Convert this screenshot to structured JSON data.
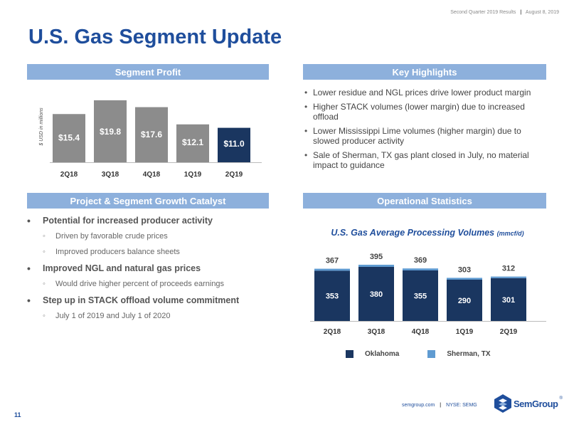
{
  "header": {
    "results": "Second Quarter 2019 Results",
    "date": "August 8, 2019"
  },
  "title": "U.S. Gas Segment Update",
  "sections": {
    "segment_profit": "Segment Profit",
    "key_highlights": "Key Highlights",
    "growth_catalyst": "Project & Segment Growth Catalyst",
    "operational_stats": "Operational Statistics"
  },
  "highlights": [
    "Lower residue and NGL prices drive lower product margin",
    "Higher STACK volumes (lower margin) due to increased offload",
    "Lower Mississippi Lime volumes (higher margin) due to slowed producer activity",
    "Sale of Sherman, TX gas plant closed in July, no material impact to guidance"
  ],
  "catalysts": [
    {
      "main": "Potential for increased producer activity",
      "subs": [
        "Driven by favorable crude prices",
        "Improved producers balance sheets"
      ]
    },
    {
      "main": "Improved NGL and natural gas prices",
      "subs": [
        "Would drive higher percent of proceeds earnings"
      ]
    },
    {
      "main": "Step up in STACK offload volume commitment",
      "subs": [
        "July 1 of 2019 and July 1 of 2020"
      ]
    }
  ],
  "ops_title": "U.S. Gas Average Processing Volumes",
  "ops_unit": "(mmcf/d)",
  "legend": {
    "oklahoma": "Oklahoma",
    "sherman": "Sherman, TX"
  },
  "colors": {
    "brand": "#1f4e9c",
    "header_bar": "#8db0dc",
    "oklahoma": "#1a3660",
    "sherman": "#5f9bd1",
    "profit_bar": "#8c8c8c",
    "profit_current": "#1a3660"
  },
  "page_number": "11",
  "footer": {
    "site": "semgroup.com",
    "ticker": "NYSE: SEMG"
  },
  "logo": {
    "text": "SemGroup",
    "mark": "®"
  },
  "chart_data": [
    {
      "type": "bar",
      "categories": [
        "2Q18",
        "3Q18",
        "4Q18",
        "1Q19",
        "2Q19"
      ],
      "values": [
        15.4,
        19.8,
        17.6,
        12.1,
        11.0
      ],
      "value_labels": [
        "$15.4",
        "$19.8",
        "$17.6",
        "$12.1",
        "$11.0"
      ],
      "ylabel": "$ USD in millions",
      "ylim": [
        0,
        20
      ],
      "grid": false,
      "legend": "none"
    },
    {
      "type": "bar",
      "stacked": true,
      "categories": [
        "2Q18",
        "3Q18",
        "4Q18",
        "1Q19",
        "2Q19"
      ],
      "series": [
        {
          "name": "Oklahoma",
          "values": [
            353,
            380,
            355,
            290,
            301
          ]
        },
        {
          "name": "Sherman, TX",
          "values": [
            14,
            15,
            14,
            13,
            11
          ]
        }
      ],
      "totals": [
        367,
        395,
        369,
        303,
        312
      ],
      "ylim": [
        0,
        400
      ],
      "grid": false,
      "legend": "bottom"
    }
  ]
}
